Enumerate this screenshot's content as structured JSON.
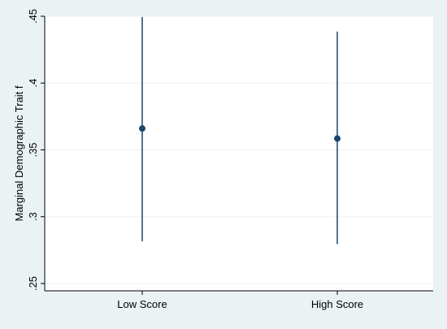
{
  "chart_data": {
    "type": "scatter",
    "title": "",
    "xlabel": "",
    "ylabel": "Marginal Demographic Trait f",
    "categories": [
      "Low Score",
      "High Score"
    ],
    "series": [
      {
        "values": [
          0.366,
          0.3585
        ],
        "ci_low": [
          0.2815,
          0.2795
        ],
        "ci_high": [
          0.4495,
          0.4385
        ]
      }
    ],
    "ylim": [
      0.25,
      0.45
    ],
    "yticks": [
      0.25,
      0.3,
      0.35,
      0.4,
      0.45
    ],
    "ytick_labels": [
      ".25",
      ".3",
      ".35",
      ".4",
      ".45"
    ],
    "grid": true,
    "legend": "none",
    "colors": {
      "background": "#eaf2f3",
      "plot_area": "#ffffff",
      "gridline": "#eaf2f3",
      "marker": "#1a476f",
      "axis": "#000000"
    }
  }
}
